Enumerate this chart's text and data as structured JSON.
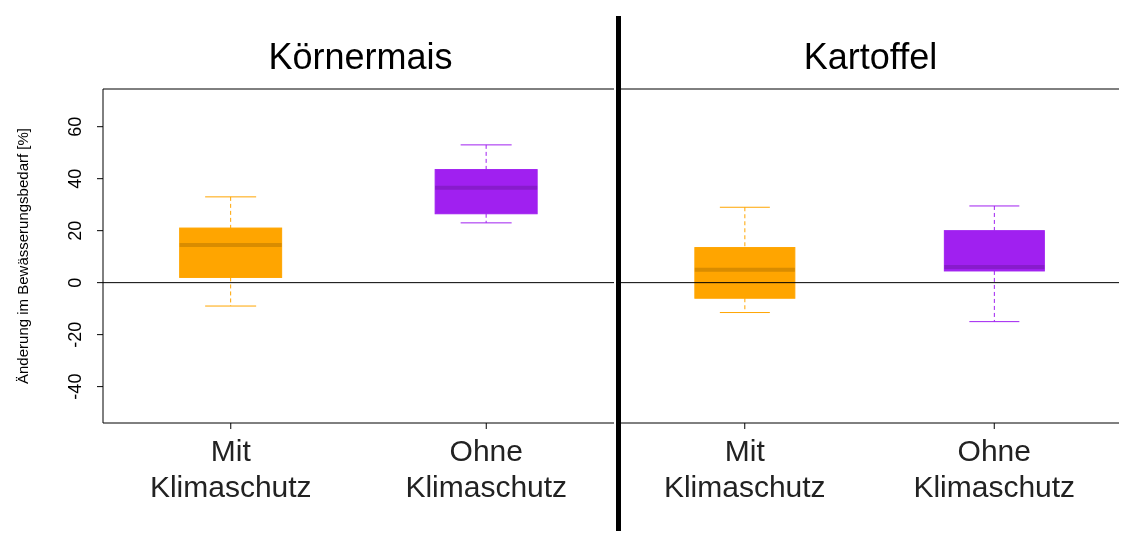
{
  "chart_data": [
    {
      "type": "box",
      "title": "Körnermais",
      "ylabel": "Änderung im Bewässerungsbedarf [%]",
      "categories": [
        "Mit Klimaschutz",
        "Ohne Klimaschutz"
      ],
      "colors": [
        "#ffa500",
        "#a020f0"
      ],
      "boxes": [
        {
          "low": -9,
          "q1": 2,
          "median": 14.5,
          "q3": 21,
          "high": 33
        },
        {
          "low": 23,
          "q1": 26.5,
          "median": 36.5,
          "q3": 43.5,
          "high": 53
        }
      ],
      "ylim": [
        -54,
        74.5
      ],
      "yticks": [
        -40,
        -20,
        0,
        20,
        40,
        60
      ],
      "ref_lines": [
        {
          "axis": "y",
          "value": 0,
          "color": "#000000"
        }
      ]
    },
    {
      "type": "box",
      "title": "Kartoffel",
      "categories": [
        "Mit Klimaschutz",
        "Ohne Klimaschutz"
      ],
      "colors": [
        "#ffa500",
        "#a020f0"
      ],
      "boxes": [
        {
          "low": -11.5,
          "q1": -6,
          "median": 5,
          "q3": 13.5,
          "high": 29
        },
        {
          "low": -15,
          "q1": 4.5,
          "median": 6,
          "q3": 20,
          "high": 29.5
        }
      ],
      "ylim": [
        -54,
        74.5
      ],
      "tick_labels": "x",
      "ref_lines": [
        {
          "axis": "y",
          "value": 0,
          "color": "#000000"
        }
      ]
    }
  ]
}
